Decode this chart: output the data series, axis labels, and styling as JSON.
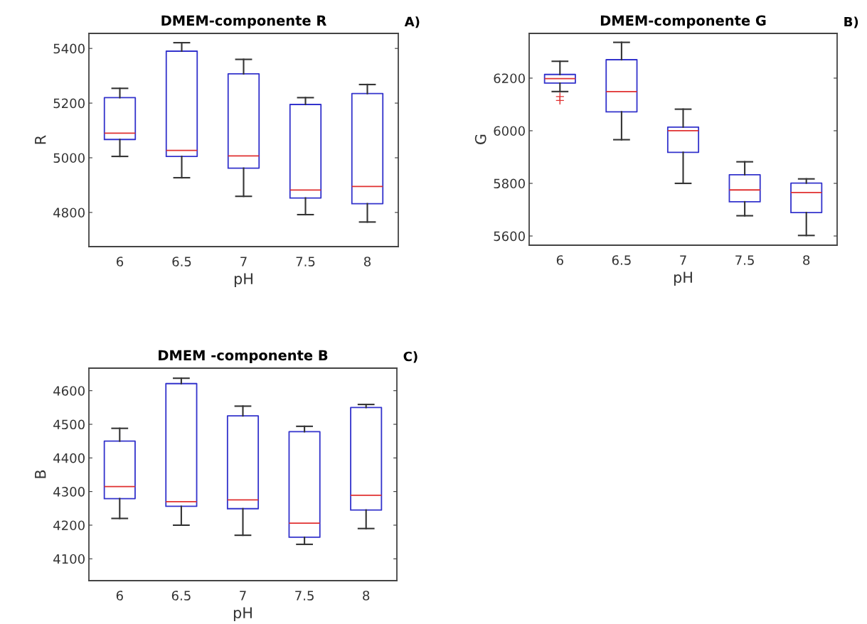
{
  "chart_data": [
    {
      "type": "box",
      "title": "DMEM-componente R",
      "xlabel": "pH",
      "ylabel": "R",
      "categories": [
        "6",
        "6.5",
        "7",
        "7.5",
        "8"
      ],
      "ylim": [
        4675,
        5455
      ],
      "yticks": [
        4800,
        5000,
        5200,
        5400
      ],
      "annotations": [
        "A)"
      ],
      "grid": false,
      "series": [
        {
          "color": "#3333cc",
          "boxes": [
            {
              "low": 5005,
              "q1": 5067,
              "median": 5090,
              "q3": 5220,
              "high": 5254
            },
            {
              "low": 4927,
              "q1": 5005,
              "median": 5027,
              "q3": 5390,
              "high": 5421
            },
            {
              "low": 4859,
              "q1": 4962,
              "median": 5007,
              "q3": 5307,
              "high": 5360
            },
            {
              "low": 4792,
              "q1": 4853,
              "median": 4882,
              "q3": 5195,
              "high": 5220
            },
            {
              "low": 4765,
              "q1": 4832,
              "median": 4895,
              "q3": 5235,
              "high": 5268
            }
          ]
        }
      ]
    },
    {
      "type": "box",
      "title": "DMEM-componente G",
      "xlabel": "pH",
      "ylabel": "G",
      "categories": [
        "6",
        "6.5",
        "7",
        "7.5",
        "8"
      ],
      "ylim": [
        5565,
        6370
      ],
      "yticks": [
        5600,
        5800,
        6000,
        6200
      ],
      "annotations": [
        "B)"
      ],
      "grid": false,
      "series": [
        {
          "color": "#3333cc",
          "boxes": [
            {
              "low": 6149,
              "q1": 6181,
              "median": 6198,
              "q3": 6214,
              "high": 6264,
              "outliers": [
                6130,
                6115
              ]
            },
            {
              "low": 5966,
              "q1": 6072,
              "median": 6149,
              "q3": 6270,
              "high": 6336
            },
            {
              "low": 5800,
              "q1": 5918,
              "median": 6000,
              "q3": 6014,
              "high": 6082
            },
            {
              "low": 5677,
              "q1": 5730,
              "median": 5775,
              "q3": 5833,
              "high": 5882
            },
            {
              "low": 5602,
              "q1": 5689,
              "median": 5765,
              "q3": 5801,
              "high": 5817
            }
          ]
        }
      ]
    },
    {
      "type": "box",
      "title": "DMEM -componente B",
      "xlabel": "pH",
      "ylabel": "B",
      "categories": [
        "6",
        "6.5",
        "7",
        "7.5",
        "8"
      ],
      "ylim": [
        4035,
        4667
      ],
      "yticks": [
        4100,
        4200,
        4300,
        4400,
        4500,
        4600
      ],
      "annotations": [
        "C)"
      ],
      "grid": false,
      "series": [
        {
          "color": "#3333cc",
          "boxes": [
            {
              "low": 4220,
              "q1": 4279,
              "median": 4315,
              "q3": 4450,
              "high": 4488
            },
            {
              "low": 4200,
              "q1": 4256,
              "median": 4270,
              "q3": 4621,
              "high": 4637
            },
            {
              "low": 4170,
              "q1": 4249,
              "median": 4275,
              "q3": 4525,
              "high": 4554
            },
            {
              "low": 4143,
              "q1": 4164,
              "median": 4206,
              "q3": 4478,
              "high": 4494
            },
            {
              "low": 4190,
              "q1": 4245,
              "median": 4289,
              "q3": 4550,
              "high": 4559
            }
          ]
        }
      ]
    }
  ]
}
